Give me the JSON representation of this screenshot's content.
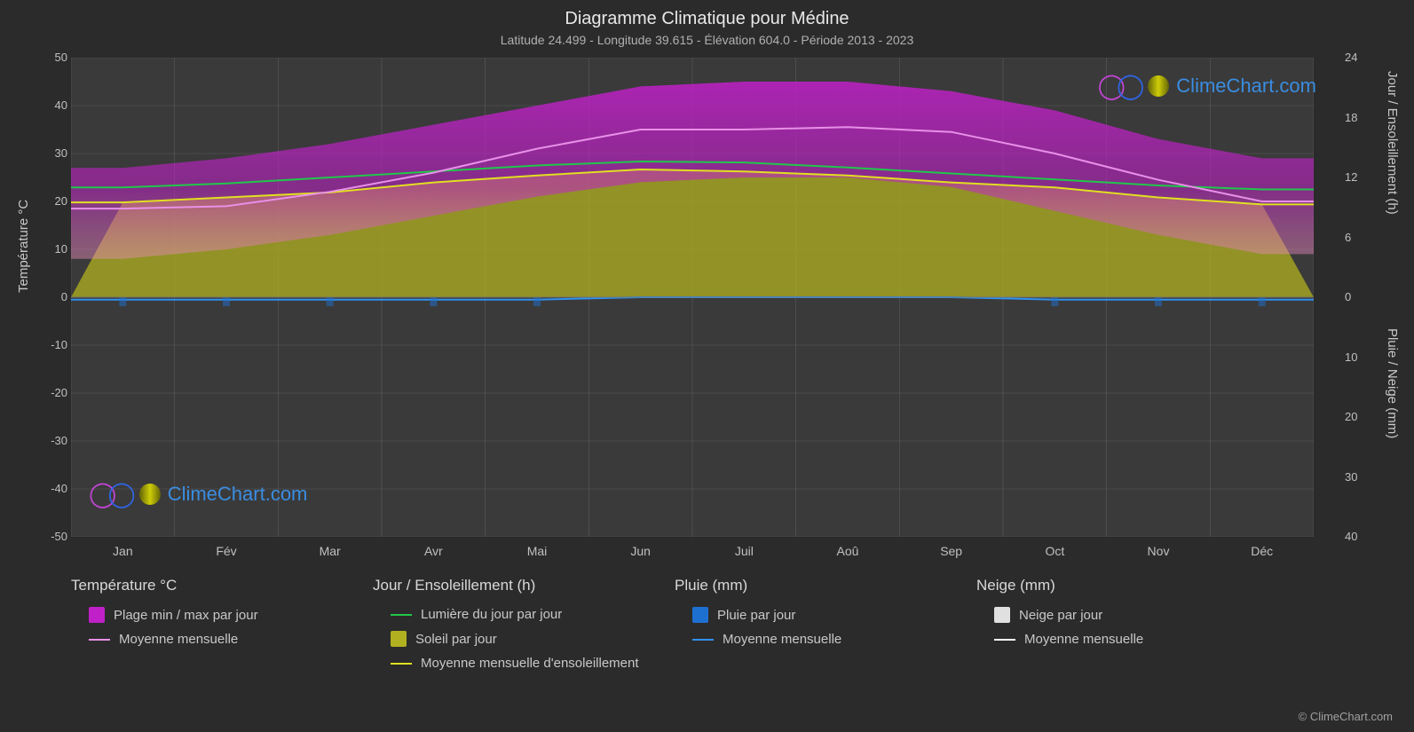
{
  "title": "Diagramme Climatique pour Médine",
  "subtitle": "Latitude 24.499 - Longitude 39.615 - Élévation 604.0 - Période 2013 - 2023",
  "copyright": "© ClimeChart.com",
  "watermark_text": "ClimeChart.com",
  "colors": {
    "background": "#2b2b2b",
    "plot_bg": "#3a3a3a",
    "grid": "#707070",
    "text": "#d0d0d0",
    "temp_range_fill_top": "#c020c8",
    "temp_range_fill_bottom": "#e88fb8",
    "temp_mean_line": "#e890e8",
    "daylight_line": "#20c84a",
    "sun_fill": "#b0b020",
    "sun_mean_line": "#e0e020",
    "rain_fill": "#1e70d0",
    "rain_mean_line": "#3090f0",
    "snow_fill": "#e0e0e0",
    "snow_mean_line": "#ffffff"
  },
  "axis_labels": {
    "left": "Température °C",
    "right_top": "Jour / Ensoleillement (h)",
    "right_bottom": "Pluie / Neige (mm)"
  },
  "y_left": {
    "min": -50,
    "max": 50,
    "ticks": [
      50,
      40,
      30,
      20,
      10,
      0,
      -10,
      -20,
      -30,
      -40,
      -50
    ]
  },
  "y_right_top": {
    "min": 0,
    "max": 24,
    "ticks": [
      24,
      18,
      12,
      6,
      0
    ]
  },
  "y_right_bottom": {
    "min": 0,
    "max": 40,
    "ticks": [
      10,
      20,
      30,
      40
    ]
  },
  "months": [
    "Jan",
    "Fév",
    "Mar",
    "Avr",
    "Mai",
    "Jun",
    "Juil",
    "Aoû",
    "Sep",
    "Oct",
    "Nov",
    "Déc"
  ],
  "data": {
    "temp_max_daily": [
      27,
      29,
      32,
      36,
      40,
      44,
      45,
      45,
      43,
      39,
      33,
      29
    ],
    "temp_mean": [
      18.5,
      19,
      22,
      26,
      31,
      35,
      35,
      35.5,
      34.5,
      30,
      24.5,
      20
    ],
    "temp_min_daily": [
      8,
      10,
      13,
      17,
      21,
      24,
      25,
      25,
      23,
      18,
      13,
      9
    ],
    "daylight_h": [
      11.0,
      11.4,
      12.0,
      12.6,
      13.2,
      13.6,
      13.5,
      13.0,
      12.4,
      11.8,
      11.2,
      10.8
    ],
    "sunshine_mean_h": [
      9.5,
      10.0,
      10.5,
      11.5,
      12.2,
      12.8,
      12.6,
      12.2,
      11.5,
      11.0,
      10.0,
      9.3
    ],
    "rain_mean_mm": [
      1,
      1,
      1,
      1,
      1,
      0,
      0,
      0,
      0,
      1,
      1,
      1
    ]
  },
  "legend": {
    "groups": [
      {
        "header": "Température °C",
        "items": [
          {
            "type": "swatch",
            "color": "#c020c8",
            "label": "Plage min / max par jour"
          },
          {
            "type": "line",
            "color": "#e890e8",
            "label": "Moyenne mensuelle"
          }
        ]
      },
      {
        "header": "Jour / Ensoleillement (h)",
        "items": [
          {
            "type": "line",
            "color": "#20c84a",
            "label": "Lumière du jour par jour"
          },
          {
            "type": "swatch",
            "color": "#b0b020",
            "label": "Soleil par jour"
          },
          {
            "type": "line",
            "color": "#e0e020",
            "label": "Moyenne mensuelle d'ensoleillement"
          }
        ]
      },
      {
        "header": "Pluie (mm)",
        "items": [
          {
            "type": "swatch",
            "color": "#1e70d0",
            "label": "Pluie par jour"
          },
          {
            "type": "line",
            "color": "#3090f0",
            "label": "Moyenne mensuelle"
          }
        ]
      },
      {
        "header": "Neige (mm)",
        "items": [
          {
            "type": "swatch",
            "color": "#e0e0e0",
            "label": "Neige par jour"
          },
          {
            "type": "line",
            "color": "#ffffff",
            "label": "Moyenne mensuelle"
          }
        ]
      }
    ]
  }
}
